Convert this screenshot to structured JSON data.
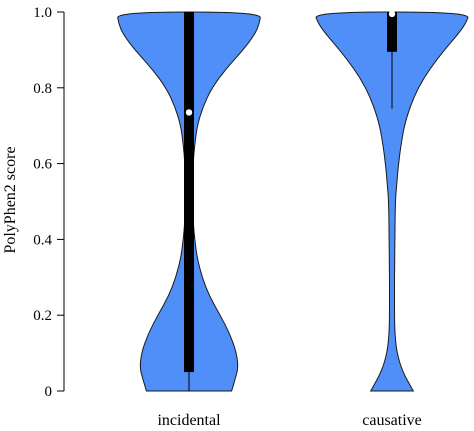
{
  "chart_data": {
    "type": "violin",
    "categories": [
      "incidental",
      "causative"
    ],
    "ylabel": "PolyPhen2 score",
    "ylim": [
      0,
      1
    ],
    "yticks": [
      0,
      0.2,
      0.4,
      0.6,
      0.8,
      1.0
    ],
    "ytick_labels": [
      "0",
      "0.2",
      "0.4",
      "0.6",
      "0.8",
      "1.0"
    ],
    "fill_color": "#4f8ff7",
    "series": [
      {
        "category": "incidental",
        "median": 0.735,
        "q1": 0.05,
        "q3": 1.0,
        "whisker_low": 0.0,
        "whisker_high": 1.0,
        "density": [
          {
            "y": 0.0,
            "w": 0.52
          },
          {
            "y": 0.03,
            "w": 0.56
          },
          {
            "y": 0.06,
            "w": 0.6
          },
          {
            "y": 0.1,
            "w": 0.58
          },
          {
            "y": 0.15,
            "w": 0.5
          },
          {
            "y": 0.2,
            "w": 0.38
          },
          {
            "y": 0.25,
            "w": 0.25
          },
          {
            "y": 0.3,
            "w": 0.16
          },
          {
            "y": 0.35,
            "w": 0.1
          },
          {
            "y": 0.4,
            "w": 0.07
          },
          {
            "y": 0.45,
            "w": 0.05
          },
          {
            "y": 0.5,
            "w": 0.045
          },
          {
            "y": 0.55,
            "w": 0.045
          },
          {
            "y": 0.6,
            "w": 0.05
          },
          {
            "y": 0.65,
            "w": 0.07
          },
          {
            "y": 0.7,
            "w": 0.1
          },
          {
            "y": 0.75,
            "w": 0.17
          },
          {
            "y": 0.8,
            "w": 0.28
          },
          {
            "y": 0.85,
            "w": 0.45
          },
          {
            "y": 0.9,
            "w": 0.66
          },
          {
            "y": 0.94,
            "w": 0.8
          },
          {
            "y": 0.97,
            "w": 0.86
          },
          {
            "y": 1.0,
            "w": 0.88
          }
        ]
      },
      {
        "category": "causative",
        "median": 0.995,
        "q1": 0.895,
        "q3": 1.0,
        "whisker_low": 0.745,
        "whisker_high": 1.0,
        "density": [
          {
            "y": 0.0,
            "w": 0.26
          },
          {
            "y": 0.05,
            "w": 0.13
          },
          {
            "y": 0.1,
            "w": 0.06
          },
          {
            "y": 0.15,
            "w": 0.035
          },
          {
            "y": 0.2,
            "w": 0.03
          },
          {
            "y": 0.3,
            "w": 0.03
          },
          {
            "y": 0.4,
            "w": 0.035
          },
          {
            "y": 0.5,
            "w": 0.04
          },
          {
            "y": 0.55,
            "w": 0.06
          },
          {
            "y": 0.6,
            "w": 0.08
          },
          {
            "y": 0.65,
            "w": 0.11
          },
          {
            "y": 0.7,
            "w": 0.15
          },
          {
            "y": 0.75,
            "w": 0.22
          },
          {
            "y": 0.8,
            "w": 0.32
          },
          {
            "y": 0.85,
            "w": 0.46
          },
          {
            "y": 0.9,
            "w": 0.64
          },
          {
            "y": 0.94,
            "w": 0.8
          },
          {
            "y": 0.97,
            "w": 0.9
          },
          {
            "y": 1.0,
            "w": 0.95
          }
        ]
      }
    ]
  }
}
